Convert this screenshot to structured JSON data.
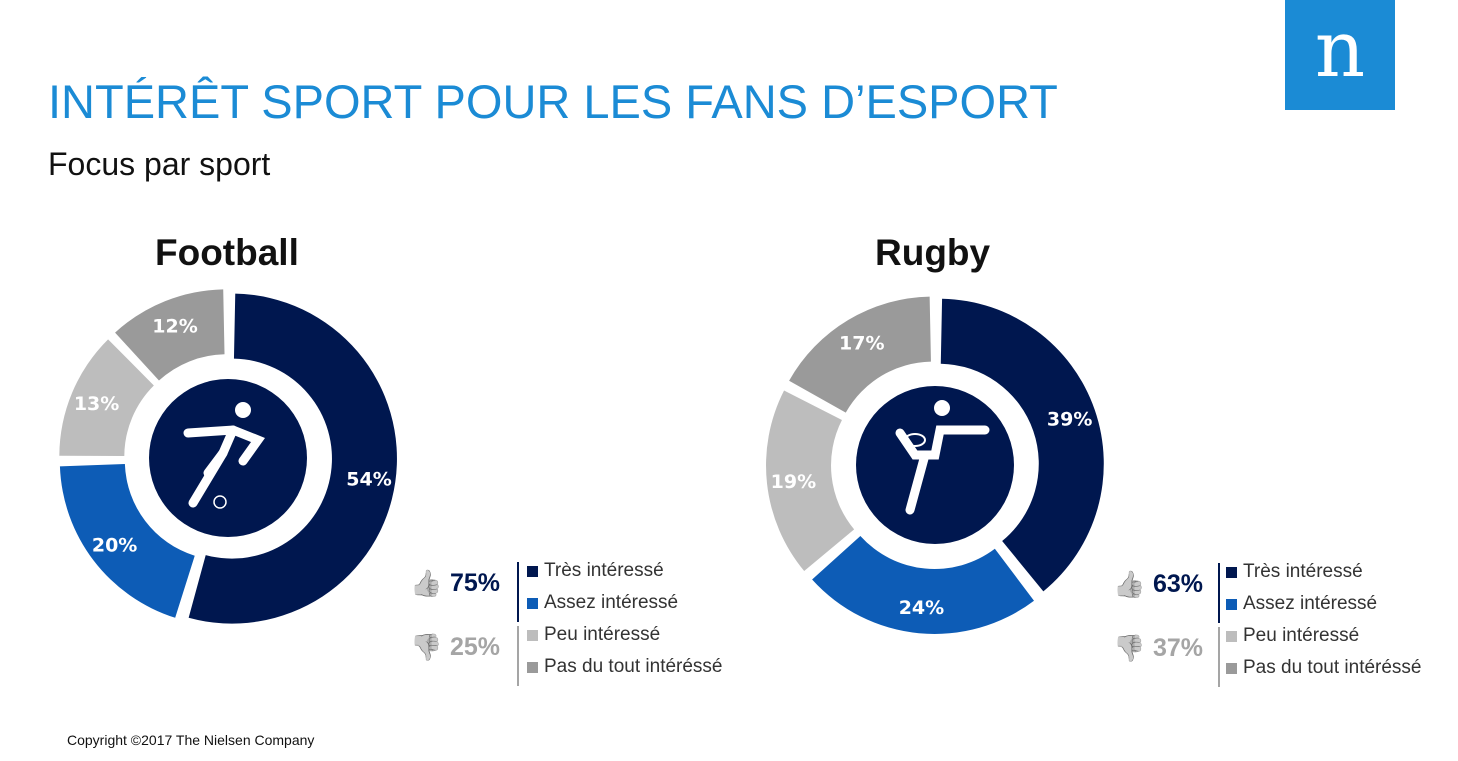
{
  "header": {
    "title": "INTÉRÊT SPORT POUR LES FANS D’ESPORT",
    "subtitle": "Focus par sport",
    "logo_text": "n"
  },
  "colors": {
    "tres": "#00174f",
    "assez": "#0d5cb6",
    "peu": "#bdbdbd",
    "pas": "#9a9a9a",
    "accent": "#1b8bd5"
  },
  "chart_data": [
    {
      "type": "pie",
      "title": "Football",
      "categories": [
        "Très intéressé",
        "Assez intéressé",
        "Peu intéressé",
        "Pas du tout intéréssé"
      ],
      "values": [
        54,
        20,
        13,
        12
      ],
      "labels": [
        "54%",
        "20%",
        "13%",
        "12%"
      ],
      "positive": {
        "label": "75%",
        "icon": "thumbs-up-icon"
      },
      "negative": {
        "label": "25%",
        "icon": "thumbs-down-icon"
      },
      "center_icon": "football-player-icon"
    },
    {
      "type": "pie",
      "title": "Rugby",
      "categories": [
        "Très intéressé",
        "Assez intéressé",
        "Peu intéressé",
        "Pas du tout intéréssé"
      ],
      "values": [
        39,
        24,
        19,
        17
      ],
      "labels": [
        "39%",
        "24%",
        "19%",
        "17%"
      ],
      "positive": {
        "label": "63%",
        "icon": "thumbs-up-icon"
      },
      "negative": {
        "label": "37%",
        "icon": "thumbs-down-icon"
      },
      "center_icon": "rugby-player-icon"
    }
  ],
  "footer": {
    "copyright": "Copyright ©2017 The Nielsen Company"
  }
}
